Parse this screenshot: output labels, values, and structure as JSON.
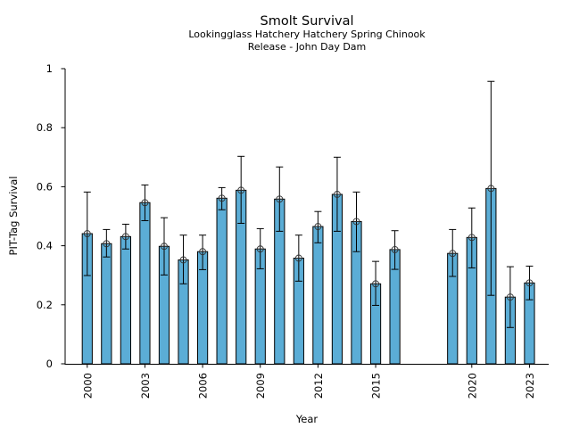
{
  "chart_data": {
    "type": "bar",
    "title": "Smolt Survival",
    "subtitle_lines": [
      "Lookingglass Hatchery Hatchery Spring Chinook",
      "Release - John Day Dam"
    ],
    "xlabel": "Year",
    "ylabel": "PIT-Tag Survival",
    "ylim": [
      0,
      1
    ],
    "xlim": [
      1998.85,
      2024
    ],
    "yticks": [
      0,
      0.2,
      0.4,
      0.6,
      0.8,
      1
    ],
    "ytick_labels": [
      "0",
      "0.2",
      "0.4",
      "0.6",
      "0.8",
      "1"
    ],
    "xticks": [
      2000,
      2003,
      2006,
      2009,
      2012,
      2015,
      2020,
      2023
    ],
    "xtick_labels": [
      "2000",
      "2003",
      "2006",
      "2009",
      "2012",
      "2015",
      "2020",
      "2023"
    ],
    "grid": false,
    "bar_color": "#5badd6",
    "edge_color": "#000000",
    "x": [
      2000,
      2001,
      2002,
      2003,
      2004,
      2005,
      2006,
      2007,
      2008,
      2009,
      2010,
      2011,
      2012,
      2013,
      2014,
      2015,
      2016,
      2019,
      2020,
      2021,
      2022,
      2023
    ],
    "values": [
      0.441,
      0.407,
      0.431,
      0.546,
      0.398,
      0.352,
      0.38,
      0.561,
      0.588,
      0.389,
      0.558,
      0.358,
      0.465,
      0.574,
      0.482,
      0.271,
      0.387,
      0.374,
      0.428,
      0.594,
      0.226,
      0.274
    ],
    "error_upper": [
      0.582,
      0.455,
      0.473,
      0.606,
      0.495,
      0.436,
      0.436,
      0.597,
      0.703,
      0.458,
      0.667,
      0.436,
      0.516,
      0.7,
      0.582,
      0.347,
      0.451,
      0.455,
      0.528,
      0.957,
      0.329,
      0.331
    ],
    "error_lower": [
      0.299,
      0.362,
      0.389,
      0.485,
      0.301,
      0.271,
      0.319,
      0.522,
      0.476,
      0.322,
      0.449,
      0.28,
      0.41,
      0.449,
      0.38,
      0.198,
      0.32,
      0.296,
      0.325,
      0.232,
      0.123,
      0.217
    ]
  }
}
